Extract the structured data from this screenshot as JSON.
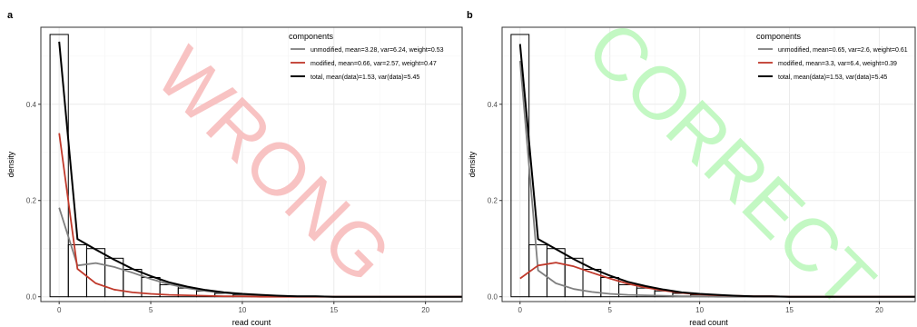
{
  "chart_data": [
    {
      "panel_label": "a",
      "type": "line",
      "xlabel": "read count",
      "ylabel": "density",
      "xlim": [
        -1,
        22
      ],
      "ylim": [
        -0.01,
        0.56
      ],
      "xticks": [
        0,
        5,
        10,
        15,
        20
      ],
      "yticks": [
        0.0,
        0.2,
        0.4
      ],
      "ytick_labels": [
        "0.0",
        "0.2",
        "0.4"
      ],
      "grid": true,
      "watermark": "WRONG",
      "watermark_color": "#f7b9b9",
      "legend": {
        "title": "components",
        "position": "top-right",
        "entries": [
          {
            "label": "unmodified, mean=3.28, var=6.24, weight=0.53",
            "color": "#7f7f7f"
          },
          {
            "label": "modified, mean=0.66, var=2.57, weight=0.47",
            "color": "#c0392b"
          },
          {
            "label": "total, mean(data)=1.53, var(data)=5.45",
            "color": "#000000"
          }
        ]
      },
      "histogram": {
        "bin_width": 1,
        "x": [
          0,
          1,
          2,
          3,
          4,
          5,
          6,
          7,
          8,
          9,
          10,
          11,
          12,
          13,
          14,
          15,
          16,
          17,
          18,
          19,
          20,
          21
        ],
        "density": [
          0.545,
          0.108,
          0.1,
          0.08,
          0.057,
          0.04,
          0.025,
          0.018,
          0.012,
          0.007,
          0.004,
          0.003,
          0.002,
          0.001,
          0.001,
          0.0,
          0.0,
          0.0,
          0.0,
          0.0,
          0.0,
          0.0
        ]
      },
      "series": [
        {
          "name": "unmodified",
          "color": "#7f7f7f",
          "x": [
            0,
            1,
            2,
            3,
            4,
            5,
            6,
            7,
            8,
            9,
            10,
            11,
            12,
            13,
            14,
            15,
            16,
            17,
            18,
            19,
            20,
            21,
            22
          ],
          "y": [
            0.185,
            0.065,
            0.07,
            0.062,
            0.05,
            0.037,
            0.026,
            0.018,
            0.012,
            0.008,
            0.005,
            0.003,
            0.002,
            0.001,
            0.001,
            0.0,
            0.0,
            0.0,
            0.0,
            0.0,
            0.0,
            0.0,
            0.0
          ]
        },
        {
          "name": "modified",
          "color": "#c0392b",
          "x": [
            0,
            1,
            2,
            3,
            4,
            5,
            6,
            7,
            8,
            9,
            10,
            11,
            12,
            13,
            14,
            15,
            16,
            17,
            18,
            19,
            20,
            21,
            22
          ],
          "y": [
            0.34,
            0.058,
            0.028,
            0.015,
            0.009,
            0.006,
            0.004,
            0.003,
            0.002,
            0.001,
            0.001,
            0.0,
            0.0,
            0.0,
            0.0,
            0.0,
            0.0,
            0.0,
            0.0,
            0.0,
            0.0,
            0.0,
            0.0
          ]
        },
        {
          "name": "total",
          "color": "#000000",
          "x": [
            0,
            1,
            2,
            3,
            4,
            5,
            6,
            7,
            8,
            9,
            10,
            11,
            12,
            13,
            14,
            15,
            16,
            17,
            18,
            19,
            20,
            21,
            22
          ],
          "y": [
            0.53,
            0.12,
            0.098,
            0.077,
            0.058,
            0.043,
            0.03,
            0.021,
            0.014,
            0.009,
            0.006,
            0.004,
            0.002,
            0.001,
            0.001,
            0.0,
            0.0,
            0.0,
            0.0,
            0.0,
            0.0,
            0.0,
            0.0
          ]
        }
      ]
    },
    {
      "panel_label": "b",
      "type": "line",
      "xlabel": "read count",
      "ylabel": "density",
      "xlim": [
        -1,
        22
      ],
      "ylim": [
        -0.01,
        0.56
      ],
      "xticks": [
        0,
        5,
        10,
        15,
        20
      ],
      "yticks": [
        0.0,
        0.2,
        0.4
      ],
      "ytick_labels": [
        "0.0",
        "0.2",
        "0.4"
      ],
      "grid": true,
      "watermark": "CORRECT",
      "watermark_color": "#b9f7b9",
      "legend": {
        "title": "components",
        "position": "top-right",
        "entries": [
          {
            "label": "unmodified, mean=0.65, var=2.6, weight=0.61",
            "color": "#7f7f7f"
          },
          {
            "label": "modified, mean=3.3, var=6.4, weight=0.39",
            "color": "#c0392b"
          },
          {
            "label": "total, mean(data)=1.53, var(data)=5.45",
            "color": "#000000"
          }
        ]
      },
      "histogram": {
        "bin_width": 1,
        "x": [
          0,
          1,
          2,
          3,
          4,
          5,
          6,
          7,
          8,
          9,
          10,
          11,
          12,
          13,
          14,
          15,
          16,
          17,
          18,
          19,
          20,
          21
        ],
        "density": [
          0.545,
          0.108,
          0.1,
          0.08,
          0.057,
          0.04,
          0.025,
          0.018,
          0.012,
          0.007,
          0.004,
          0.003,
          0.002,
          0.001,
          0.001,
          0.0,
          0.0,
          0.0,
          0.0,
          0.0,
          0.0,
          0.0
        ]
      },
      "series": [
        {
          "name": "unmodified",
          "color": "#7f7f7f",
          "x": [
            0,
            1,
            2,
            3,
            4,
            5,
            6,
            7,
            8,
            9,
            10,
            11,
            12,
            13,
            14,
            15,
            16,
            17,
            18,
            19,
            20,
            21,
            22
          ],
          "y": [
            0.49,
            0.055,
            0.028,
            0.016,
            0.01,
            0.006,
            0.004,
            0.003,
            0.002,
            0.001,
            0.001,
            0.0,
            0.0,
            0.0,
            0.0,
            0.0,
            0.0,
            0.0,
            0.0,
            0.0,
            0.0,
            0.0,
            0.0
          ]
        },
        {
          "name": "modified",
          "color": "#c0392b",
          "x": [
            0,
            1,
            2,
            3,
            4,
            5,
            6,
            7,
            8,
            9,
            10,
            11,
            12,
            13,
            14,
            15,
            16,
            17,
            18,
            19,
            20,
            21,
            22
          ],
          "y": [
            0.038,
            0.065,
            0.071,
            0.063,
            0.05,
            0.038,
            0.027,
            0.019,
            0.013,
            0.008,
            0.005,
            0.003,
            0.002,
            0.001,
            0.001,
            0.0,
            0.0,
            0.0,
            0.0,
            0.0,
            0.0,
            0.0,
            0.0
          ]
        },
        {
          "name": "total",
          "color": "#000000",
          "x": [
            0,
            1,
            2,
            3,
            4,
            5,
            6,
            7,
            8,
            9,
            10,
            11,
            12,
            13,
            14,
            15,
            16,
            17,
            18,
            19,
            20,
            21,
            22
          ],
          "y": [
            0.525,
            0.12,
            0.099,
            0.078,
            0.059,
            0.044,
            0.031,
            0.022,
            0.015,
            0.009,
            0.006,
            0.004,
            0.002,
            0.001,
            0.001,
            0.0,
            0.0,
            0.0,
            0.0,
            0.0,
            0.0,
            0.0,
            0.0
          ]
        }
      ]
    }
  ]
}
